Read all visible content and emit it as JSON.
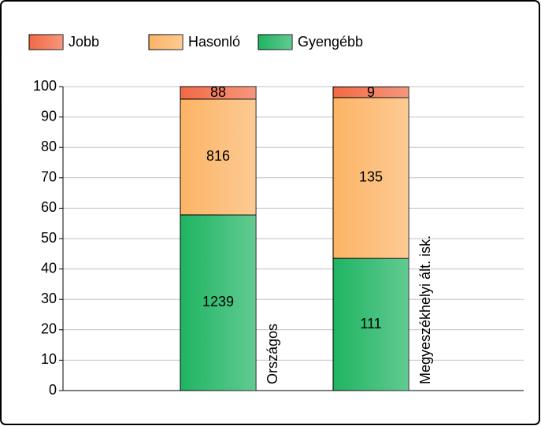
{
  "chart_data": {
    "type": "stacked_bar_percent",
    "categories": [
      "Országos",
      "Megyeszékhelyi ált. isk."
    ],
    "series": [
      {
        "name": "Jobb",
        "color": "#f26a45",
        "values": [
          4.1,
          3.5
        ],
        "counts": [
          88,
          9
        ]
      },
      {
        "name": "Hasonló",
        "color": "#fcb465",
        "values": [
          38.1,
          52.9
        ],
        "counts": [
          816,
          135
        ]
      },
      {
        "name": "Gyengébb",
        "color": "#1fb462",
        "values": [
          57.8,
          43.5
        ],
        "counts": [
          1239,
          111
        ]
      }
    ],
    "ylim": [
      0,
      100
    ],
    "yticks": [
      0,
      10,
      20,
      30,
      40,
      50,
      60,
      70,
      80,
      90,
      100
    ],
    "grid": true,
    "legend": "top-left"
  }
}
